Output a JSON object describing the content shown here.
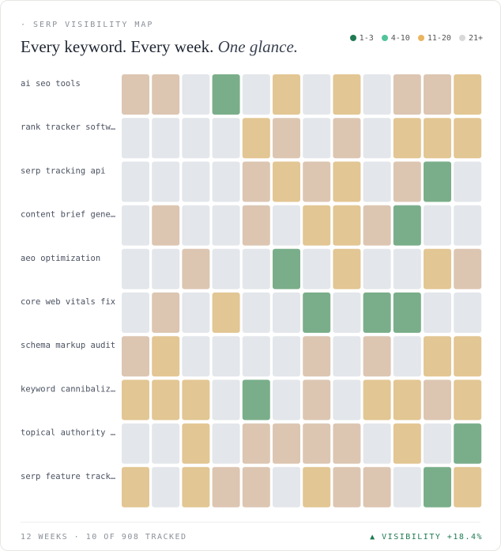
{
  "chart_data": {
    "type": "heatmap",
    "eyebrow": "· SERP VISIBILITY MAP",
    "title": "Every keyword. Every week.",
    "title_emphasis": "One glance.",
    "legend": [
      {
        "name": "1-3",
        "color": "#1f7a52",
        "cell_color": "#7aae8a"
      },
      {
        "name": "4-10",
        "color": "#52c49a",
        "cell_color": "#dcc6b2"
      },
      {
        "name": "11-20",
        "color": "#eab55f",
        "cell_color": "#e2c693"
      },
      {
        "name": "21+",
        "color": "#d9d9d9",
        "cell_color": "#e3e6ea"
      }
    ],
    "categories": [
      "ai seo tools",
      "rank tracker softw…",
      "serp tracking api",
      "content brief gene…",
      "aeo optimization",
      "core web vitals fix",
      "schema markup audit",
      "keyword cannibaliz…",
      "topical authority …",
      "serp feature track…"
    ],
    "values": [
      [
        1,
        1,
        3,
        0,
        3,
        2,
        3,
        2,
        3,
        1,
        1,
        2
      ],
      [
        3,
        3,
        3,
        3,
        2,
        1,
        3,
        1,
        3,
        2,
        2,
        2
      ],
      [
        3,
        3,
        3,
        3,
        1,
        2,
        1,
        2,
        3,
        1,
        0,
        3
      ],
      [
        3,
        1,
        3,
        3,
        1,
        3,
        2,
        2,
        1,
        0,
        3,
        3
      ],
      [
        3,
        3,
        1,
        3,
        3,
        0,
        3,
        2,
        3,
        3,
        2,
        1
      ],
      [
        3,
        1,
        3,
        2,
        3,
        3,
        0,
        3,
        0,
        0,
        3,
        3
      ],
      [
        1,
        2,
        3,
        3,
        3,
        3,
        1,
        3,
        1,
        3,
        2,
        2
      ],
      [
        2,
        2,
        2,
        3,
        0,
        3,
        1,
        3,
        2,
        2,
        1,
        2
      ],
      [
        3,
        3,
        2,
        3,
        1,
        1,
        1,
        1,
        3,
        2,
        3,
        0
      ],
      [
        2,
        3,
        2,
        1,
        1,
        3,
        2,
        1,
        1,
        3,
        0,
        2
      ]
    ],
    "footer_left": "12 WEEKS · 10 OF 908 TRACKED",
    "footer_right": "▲ VISIBILITY +18.4%"
  }
}
